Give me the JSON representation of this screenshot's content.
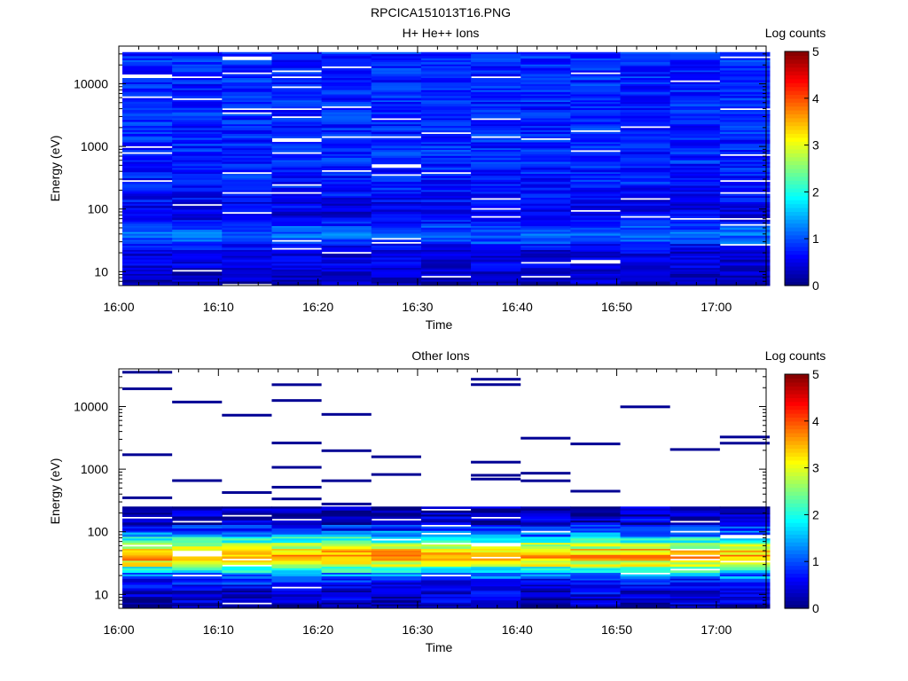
{
  "figure_title": "RPCICA151013T16.PNG",
  "chart_data": [
    {
      "type": "heatmap",
      "title": "H+ He++ Ions",
      "xlabel": "Time",
      "ylabel": "Energy (eV)",
      "x_ticks": [
        "16:00",
        "16:10",
        "16:20",
        "16:30",
        "16:40",
        "16:50",
        "17:00"
      ],
      "x_range": [
        "16:00",
        "17:05"
      ],
      "x_bins": [
        "16:00",
        "16:05",
        "16:10",
        "16:15",
        "16:20",
        "16:25",
        "16:30",
        "16:35",
        "16:40",
        "16:45",
        "16:50",
        "16:55",
        "17:00"
      ],
      "y_scale": "log",
      "y_range": [
        6,
        40000
      ],
      "y_ticks": [
        10,
        100,
        1000,
        10000
      ],
      "colorbar": {
        "label": "Log counts",
        "range": [
          0,
          5
        ],
        "ticks": [
          0,
          1,
          2,
          3,
          4,
          5
        ]
      },
      "energy_profile": [
        {
          "energy_eV": 8,
          "log_counts": 0.3
        },
        {
          "energy_eV": 12,
          "log_counts": 0.5
        },
        {
          "energy_eV": 18,
          "log_counts": 0.4
        },
        {
          "energy_eV": 25,
          "log_counts": 0.6
        },
        {
          "energy_eV": 35,
          "log_counts": 1.2
        },
        {
          "energy_eV": 50,
          "log_counts": 1.0
        },
        {
          "energy_eV": 70,
          "log_counts": 0.5
        },
        {
          "energy_eV": 100,
          "log_counts": 0.5
        },
        {
          "energy_eV": 200,
          "log_counts": 0.7
        },
        {
          "energy_eV": 500,
          "log_counts": 0.8
        },
        {
          "energy_eV": 1000,
          "log_counts": 0.8
        },
        {
          "energy_eV": 3000,
          "log_counts": 0.8
        },
        {
          "energy_eV": 10000,
          "log_counts": 0.8
        },
        {
          "energy_eV": 30000,
          "log_counts": 0.8
        }
      ]
    },
    {
      "type": "heatmap",
      "title": "Other Ions",
      "xlabel": "Time",
      "ylabel": "Energy (eV)",
      "x_ticks": [
        "16:00",
        "16:10",
        "16:20",
        "16:30",
        "16:40",
        "16:50",
        "17:00"
      ],
      "x_range": [
        "16:00",
        "17:05"
      ],
      "x_bins": [
        "16:00",
        "16:05",
        "16:10",
        "16:15",
        "16:20",
        "16:25",
        "16:30",
        "16:35",
        "16:40",
        "16:45",
        "16:50",
        "16:55",
        "17:00"
      ],
      "y_scale": "log",
      "y_range": [
        6,
        40000
      ],
      "y_ticks": [
        10,
        100,
        1000,
        10000
      ],
      "colorbar": {
        "label": "Log counts",
        "range": [
          0,
          5
        ],
        "ticks": [
          0,
          1,
          2,
          3,
          4,
          5
        ]
      },
      "energy_profile": [
        {
          "energy_eV": 8,
          "log_counts": 0.3
        },
        {
          "energy_eV": 11,
          "log_counts": 0.5
        },
        {
          "energy_eV": 15,
          "log_counts": 0.6
        },
        {
          "energy_eV": 20,
          "log_counts": 1.2
        },
        {
          "energy_eV": 25,
          "log_counts": 2.0
        },
        {
          "energy_eV": 30,
          "log_counts": 2.8
        },
        {
          "energy_eV": 35,
          "log_counts": 3.4
        },
        {
          "energy_eV": 40,
          "log_counts": 3.6
        },
        {
          "energy_eV": 50,
          "log_counts": 3.3
        },
        {
          "energy_eV": 60,
          "log_counts": 2.8
        },
        {
          "energy_eV": 80,
          "log_counts": 1.8
        },
        {
          "energy_eV": 100,
          "log_counts": 1.0
        },
        {
          "energy_eV": 150,
          "log_counts": 0.4
        },
        {
          "energy_eV": 200,
          "log_counts": 0.2
        },
        {
          "energy_eV": 250,
          "log_counts": 0.1
        }
      ],
      "sparse_high_energy_counts": "isolated ~0 log-count bins between 300 eV and 40000 eV"
    }
  ]
}
